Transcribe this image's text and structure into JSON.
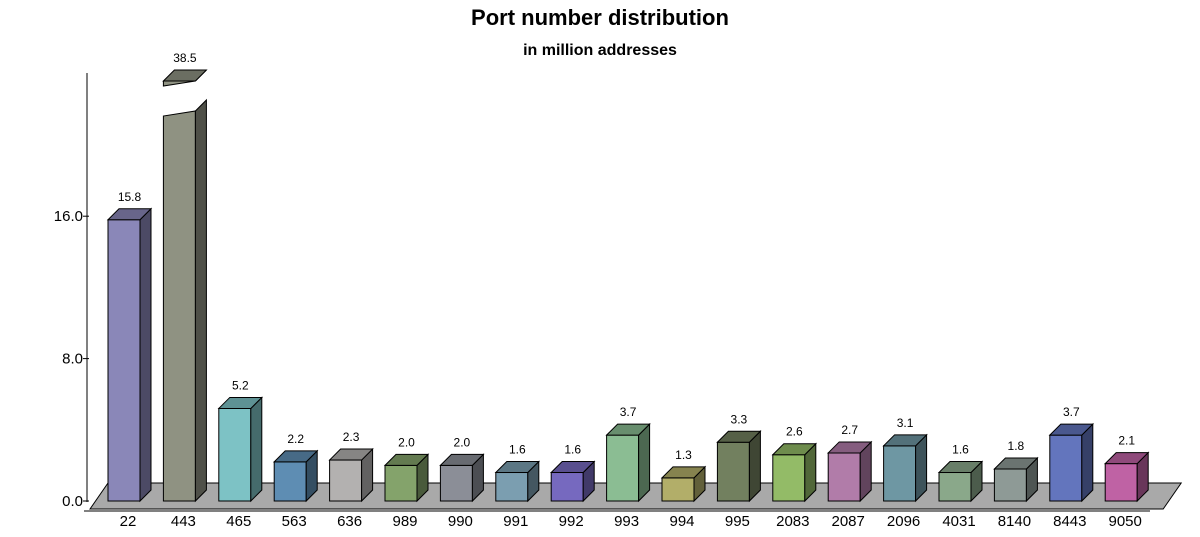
{
  "chart_data": {
    "type": "bar",
    "title": "Port number distribution",
    "subtitle": "in million addresses",
    "xlabel": "",
    "ylabel": "",
    "categories": [
      "22",
      "443",
      "465",
      "563",
      "636",
      "989",
      "990",
      "991",
      "992",
      "993",
      "994",
      "995",
      "2083",
      "2087",
      "2096",
      "4031",
      "8140",
      "8443",
      "9050"
    ],
    "values": [
      15.8,
      38.5,
      5.2,
      2.2,
      2.3,
      2.0,
      2.0,
      1.6,
      1.6,
      3.7,
      1.3,
      3.3,
      2.6,
      2.7,
      3.1,
      1.6,
      1.8,
      3.7,
      2.1
    ],
    "value_labels": [
      "15.8",
      "38.5",
      "5.2",
      "2.2",
      "2.3",
      "2.0",
      "2.0",
      "1.6",
      "1.6",
      "3.7",
      "1.3",
      "3.3",
      "2.6",
      "2.7",
      "3.1",
      "1.6",
      "1.8",
      "3.7",
      "2.1"
    ],
    "colors": [
      "#8a87b8",
      "#8f9282",
      "#7dc2c5",
      "#5e8db3",
      "#b3b1b0",
      "#84a36b",
      "#8b8e97",
      "#7b9eb0",
      "#7669bf",
      "#8bbd93",
      "#b2ae69",
      "#72805f",
      "#93bb67",
      "#b17ca9",
      "#6e97a3",
      "#8aa88a",
      "#8e9a96",
      "#6375bd",
      "#bf62a4"
    ],
    "ylim": [
      0,
      18
    ],
    "yticks": [
      0,
      8,
      16
    ],
    "ytick_labels": [
      "0.0",
      "8.0",
      "16.0"
    ],
    "axis_break": true,
    "grid": false,
    "legend": "none"
  }
}
